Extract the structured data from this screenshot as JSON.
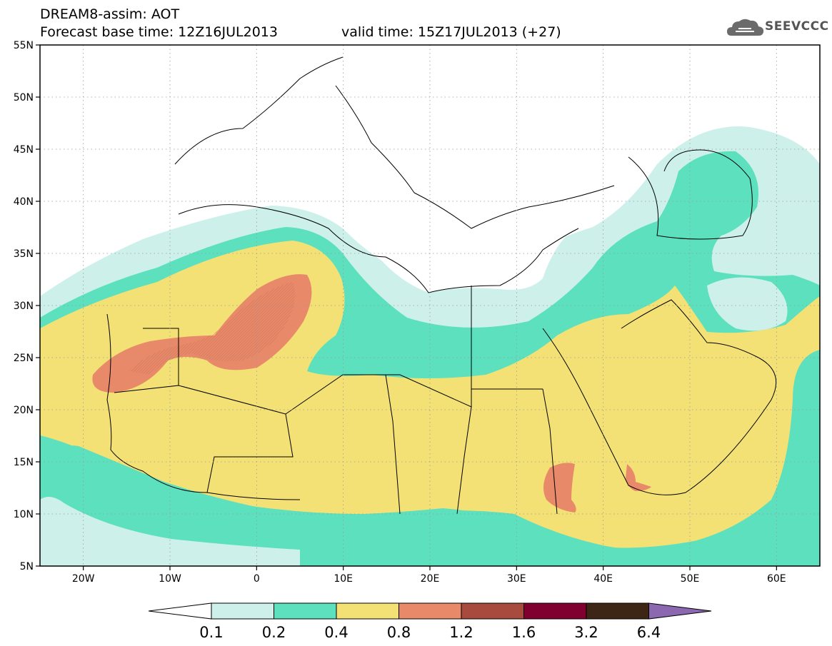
{
  "header": {
    "title": "DREAM8-assim: AOT",
    "base_time": "Forecast base time: 12Z16JUL2013",
    "valid_time": "valid time: 15Z17JUL2013 (+27)"
  },
  "logo": {
    "text": "SEEVCCC",
    "icon": "cloud-icon"
  },
  "map": {
    "lat_ticks": [
      "55N",
      "50N",
      "45N",
      "40N",
      "35N",
      "30N",
      "25N",
      "20N",
      "15N",
      "10N",
      "5N"
    ],
    "lon_ticks": [
      "20W",
      "10W",
      "0",
      "10E",
      "20E",
      "30E",
      "40E",
      "50E",
      "60E"
    ]
  },
  "colorbar": {
    "labels": [
      "0.1",
      "0.2",
      "0.4",
      "0.8",
      "1.2",
      "1.6",
      "3.2",
      "6.4"
    ],
    "colors": [
      "#ffffff",
      "#cdf1ea",
      "#5ce0bd",
      "#f4e175",
      "#e88a6a",
      "#a84a3e",
      "#800030",
      "#3e2617",
      "#8c68b0"
    ]
  }
}
